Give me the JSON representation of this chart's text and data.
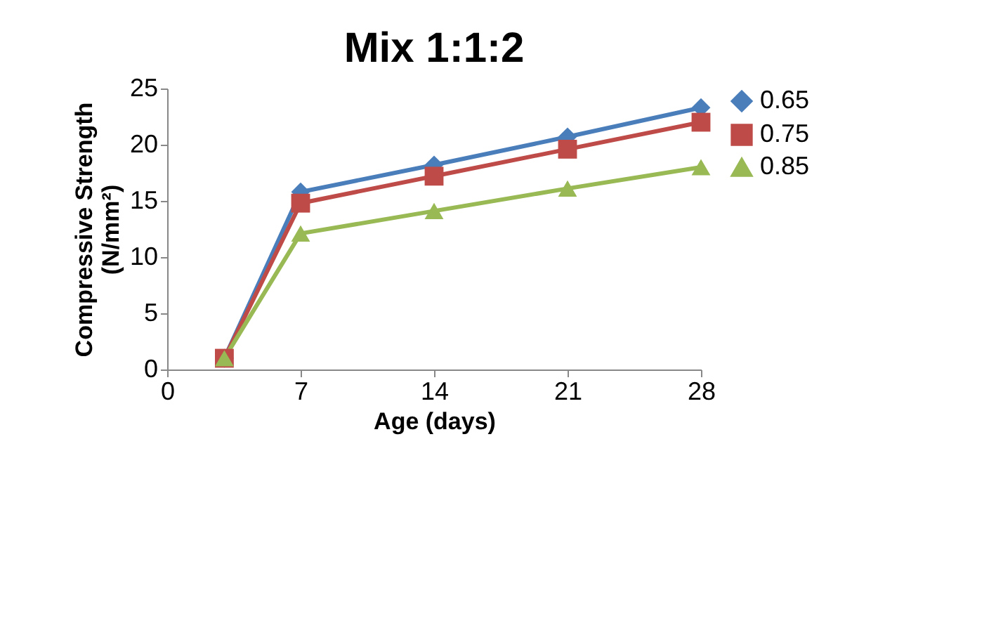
{
  "chart_data": {
    "type": "line",
    "title": "Mix 1:1:2",
    "xlabel": "Age (days)",
    "ylabel": "Compressive Strength\n(N/mm²)",
    "x": [
      3,
      7,
      14,
      21,
      28
    ],
    "series": [
      {
        "name": "0.65",
        "color": "#4a7ebb",
        "marker": "diamond",
        "values": [
          1,
          15.8,
          18.2,
          20.7,
          23.3
        ]
      },
      {
        "name": "0.75",
        "color": "#be4b48",
        "marker": "square",
        "values": [
          1,
          14.8,
          17.2,
          19.6,
          22
        ]
      },
      {
        "name": "0.85",
        "color": "#98b954",
        "marker": "triangle",
        "values": [
          1,
          12.1,
          14.1,
          16.1,
          18
        ]
      }
    ],
    "xlim": [
      0,
      28
    ],
    "xticks": [
      0,
      7,
      14,
      21,
      28
    ],
    "ylim": [
      0,
      25
    ],
    "yticks": [
      0,
      5,
      10,
      15,
      20,
      25
    ],
    "grid": false,
    "legend": "right"
  }
}
